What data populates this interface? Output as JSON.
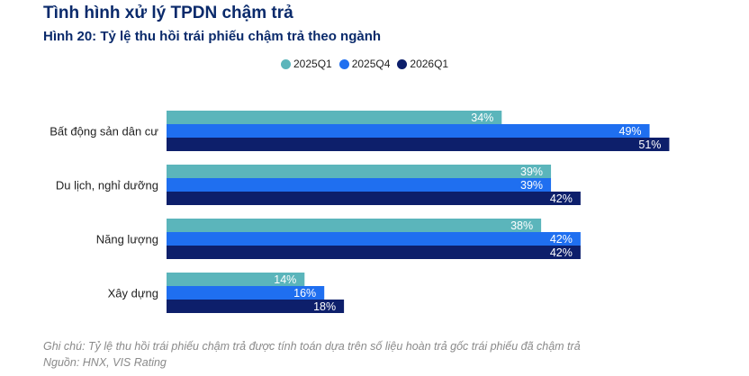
{
  "header": {
    "title": "Tình hình xử lý TPDN chậm trả"
  },
  "figure": {
    "title": "Hình 20: Tỷ lệ thu hồi trái phiếu chậm trả theo ngành"
  },
  "notes": {
    "note": "Ghi chú: Tỷ lệ thu hồi trái phiếu chậm trả được tính toán dựa trên số liệu hoàn trả gốc trái phiếu đã chậm trả",
    "source": "Nguồn: HNX, VIS Rating"
  },
  "chart_data": {
    "type": "bar",
    "orientation": "horizontal",
    "title": "Hình 20: Tỷ lệ thu hồi trái phiếu chậm trả theo ngành",
    "categories": [
      "Bất động sản dân cư",
      "Du lịch, nghỉ dưỡng",
      "Năng lượng",
      "Xây dựng"
    ],
    "series": [
      {
        "name": "2025Q1",
        "color": "#5bb5bb",
        "values": [
          34,
          39,
          38,
          14
        ],
        "labels": [
          "34%",
          "39%",
          "38%",
          "14%"
        ]
      },
      {
        "name": "2025Q4",
        "color": "#1f6ff0",
        "values": [
          49,
          39,
          42,
          16
        ],
        "labels": [
          "49%",
          "39%",
          "42%",
          "16%"
        ]
      },
      {
        "name": "2026Q1",
        "color": "#0d1f6b",
        "values": [
          51,
          42,
          42,
          18
        ],
        "labels": [
          "51%",
          "42%",
          "42%",
          "18%"
        ]
      }
    ],
    "xlim": [
      0,
      60
    ],
    "grid": false,
    "legend_position": "top-center",
    "xlabel": "",
    "ylabel": ""
  }
}
